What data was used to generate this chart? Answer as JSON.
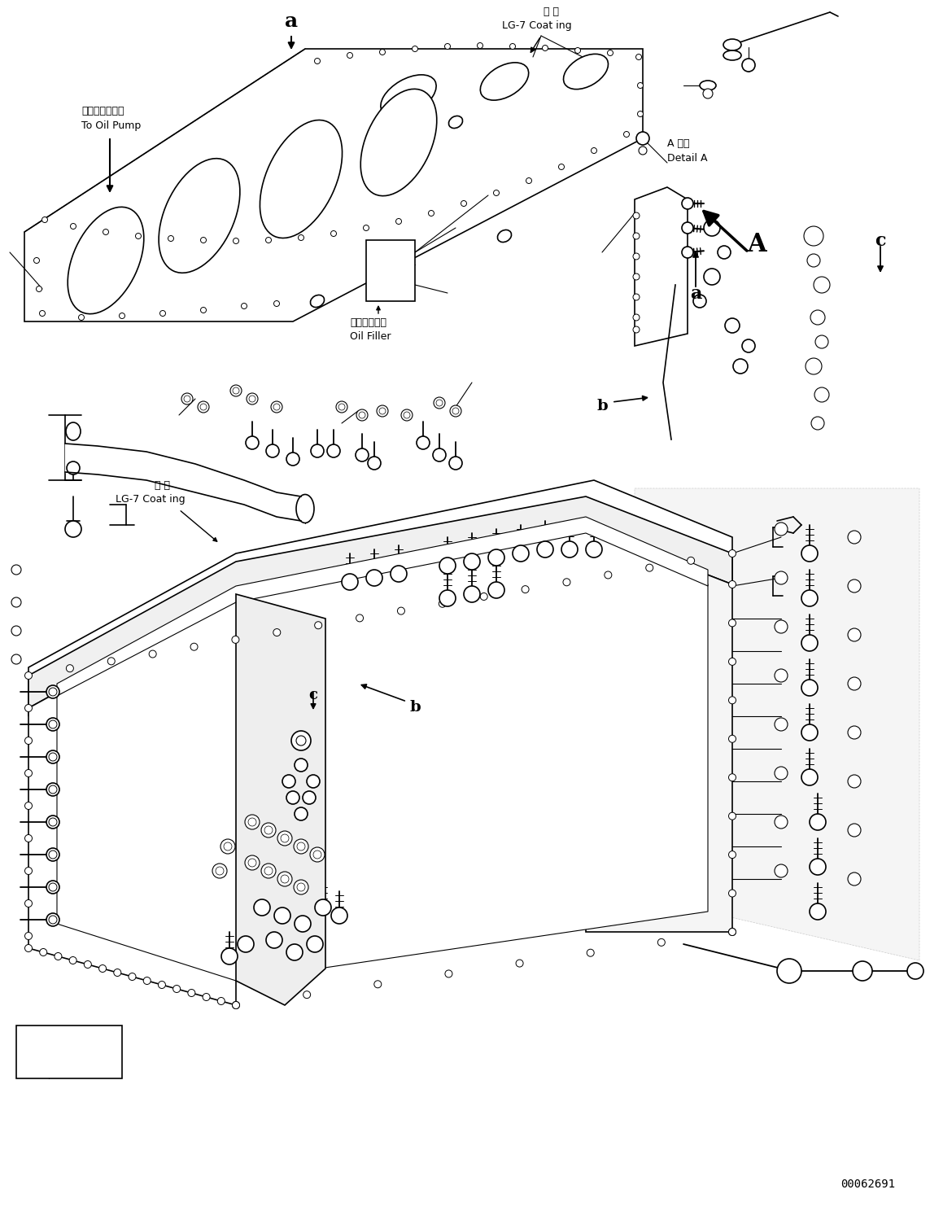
{
  "background_color": "#ffffff",
  "line_color": "#000000",
  "fig_width": 11.43,
  "fig_height": 14.83,
  "dpi": 100,
  "part_id": "00062691",
  "labels": {
    "coating_top_ja": "塗 布",
    "coating_top_en": "LG-7 Coat ing",
    "coating_bottom_ja": "塗 布",
    "coating_bottom_en": "LG-7 Coat ing",
    "oil_pump_ja": "オイルポンプへ",
    "oil_pump_en": "To Oil Pump",
    "oil_filler_ja": "オイルフィラ",
    "oil_filler_en": "Oil Filler",
    "detail_a_ja": "A 詳細",
    "detail_a_en": "Detail A",
    "label_a_top": "a",
    "label_a_right": "a",
    "label_b_mid": "b",
    "label_b_bot": "b",
    "label_c_right": "c",
    "label_c_mid": "c",
    "label_A": "A"
  }
}
